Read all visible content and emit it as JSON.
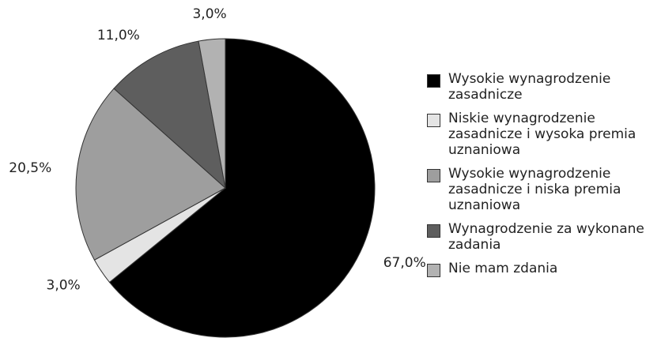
{
  "chart_data": {
    "type": "pie",
    "categories": [
      "Wysokie wynagrodzenie zasadnicze",
      "Niskie wynagrodzenie zasadnicze i wysoka premia uznaniowa",
      "Wysokie wynagrodzenie zasadnicze i niska premia uznaniowa",
      "Wynagrodzenie za wykonane zadania",
      "Nie mam zdania"
    ],
    "values": [
      67.0,
      3.0,
      20.5,
      11.0,
      3.0
    ],
    "value_labels": [
      "67,0%",
      "3,0%",
      "20,5%",
      "11,0%",
      "3,0%"
    ],
    "colors": [
      "#000000",
      "#e4e4e4",
      "#9e9e9e",
      "#5e5e5e",
      "#b2b2b2"
    ],
    "legend": "right"
  }
}
